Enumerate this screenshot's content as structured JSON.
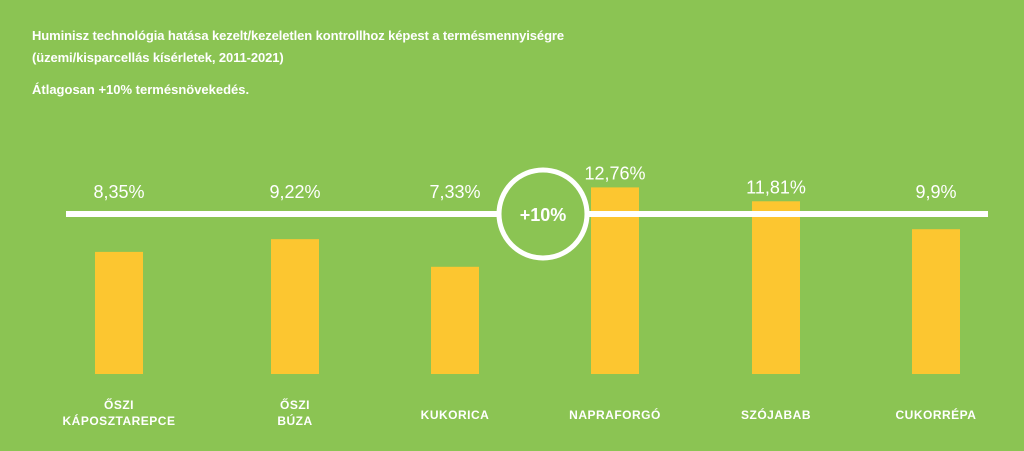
{
  "header": {
    "title_line1": "Huminisz technológia hatása kezelt/kezeletlen kontrollhoz képest a termésmennyiségre",
    "title_line2": "(üzemi/kisparcellás kísérletek, 2011-2021)",
    "average_note": "Átlagosan +10% termésnövekedés."
  },
  "colors": {
    "background": "#8bc453",
    "bar": "#fcc630",
    "line": "#ffffff",
    "text": "#ffffff"
  },
  "chart_data": {
    "type": "bar",
    "categories": [
      [
        "ŐSZI",
        "KÁPOSZTAREPCE"
      ],
      [
        "ŐSZI",
        "BÚZA"
      ],
      [
        "KUKORICA"
      ],
      [
        "NAPRAFORGÓ"
      ],
      [
        "SZÓJABAB"
      ],
      [
        "CUKORRÉPA"
      ]
    ],
    "values": [
      8.35,
      9.22,
      7.33,
      12.76,
      11.81,
      9.9
    ],
    "value_labels": [
      "8,35%",
      "9,22%",
      "7,33%",
      "12,76%",
      "11,81%",
      "9,9%"
    ],
    "average": 10,
    "average_label": "+10%",
    "ylim": [
      0,
      16
    ]
  }
}
